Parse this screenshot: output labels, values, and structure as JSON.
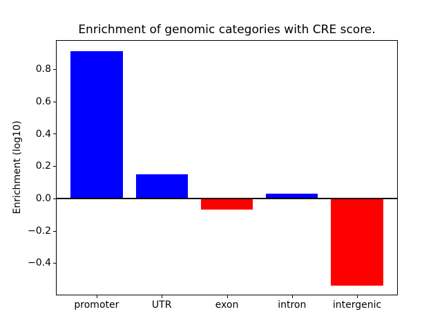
{
  "chart_data": {
    "type": "bar",
    "title": "Enrichment of genomic categories with CRE score.",
    "xlabel": "",
    "ylabel": "Enrichment (log10)",
    "categories": [
      "promoter",
      "UTR",
      "exon",
      "intron",
      "intergenic"
    ],
    "values": [
      0.91,
      0.15,
      -0.07,
      0.03,
      -0.54
    ],
    "bar_colors": [
      "#0000ff",
      "#0000ff",
      "#ff0000",
      "#0000ff",
      "#ff0000"
    ],
    "positive_color": "#0000ff",
    "negative_color": "#ff0000",
    "ylim": [
      -0.6,
      0.98
    ],
    "yticks": [
      0.8,
      0.6,
      0.4,
      0.2,
      0.0,
      -0.2,
      -0.4
    ],
    "ytick_labels": [
      "0.8",
      "0.6",
      "0.4",
      "0.2",
      "0.0",
      "−0.2",
      "−0.4"
    ],
    "grid": false,
    "legend": "none",
    "zero_line": true,
    "background_color": "#ffffff",
    "spine_color": "#000000"
  }
}
